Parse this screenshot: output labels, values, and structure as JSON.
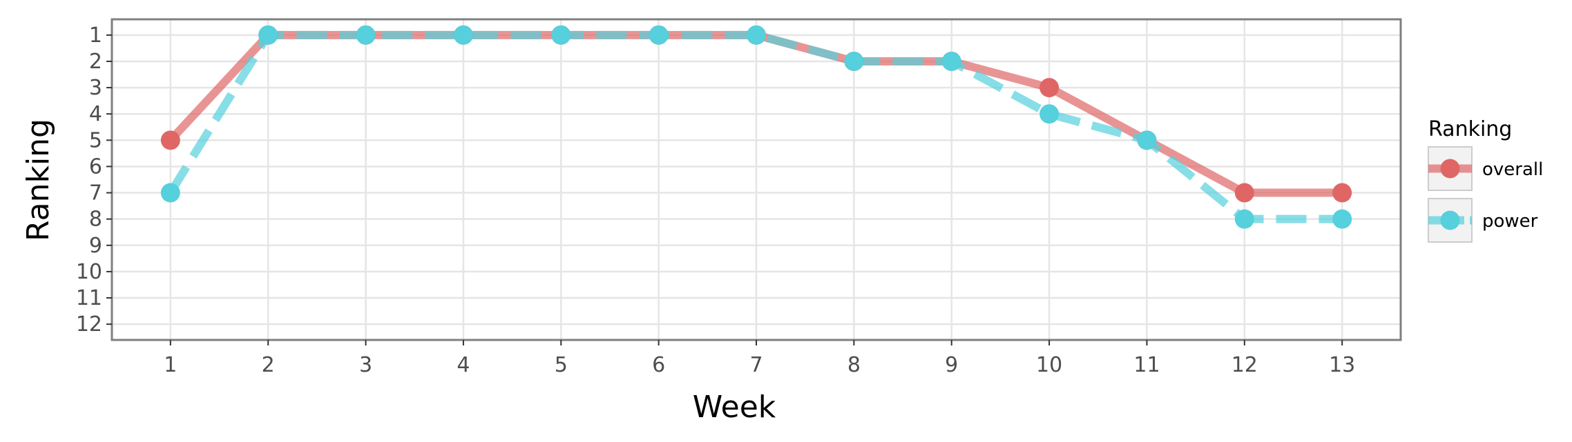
{
  "chart_data": {
    "type": "line",
    "xlabel": "Week",
    "ylabel": "Ranking",
    "x": [
      1,
      2,
      3,
      4,
      5,
      6,
      7,
      8,
      9,
      10,
      11,
      12,
      13
    ],
    "x_ticks": [
      "1",
      "2",
      "3",
      "4",
      "5",
      "6",
      "7",
      "8",
      "9",
      "10",
      "11",
      "12",
      "13"
    ],
    "y_ticks": [
      "1",
      "2",
      "3",
      "4",
      "5",
      "6",
      "7",
      "8",
      "9",
      "10",
      "11",
      "12"
    ],
    "xlim": [
      0.4,
      13.6
    ],
    "ylim": [
      12.6,
      0.4
    ],
    "y_reversed": true,
    "grid": true,
    "legend": {
      "title": "Ranking",
      "placement": "right"
    },
    "series": [
      {
        "name": "overall",
        "color": "#e06666",
        "line_style": "solid",
        "values": [
          5,
          1,
          1,
          1,
          1,
          1,
          1,
          2,
          2,
          3,
          5,
          7,
          7
        ]
      },
      {
        "name": "power",
        "color": "#55d0dc",
        "line_style": "dashed",
        "values": [
          7,
          1,
          1,
          1,
          1,
          1,
          1,
          2,
          2,
          4,
          5,
          8,
          8
        ]
      }
    ]
  }
}
